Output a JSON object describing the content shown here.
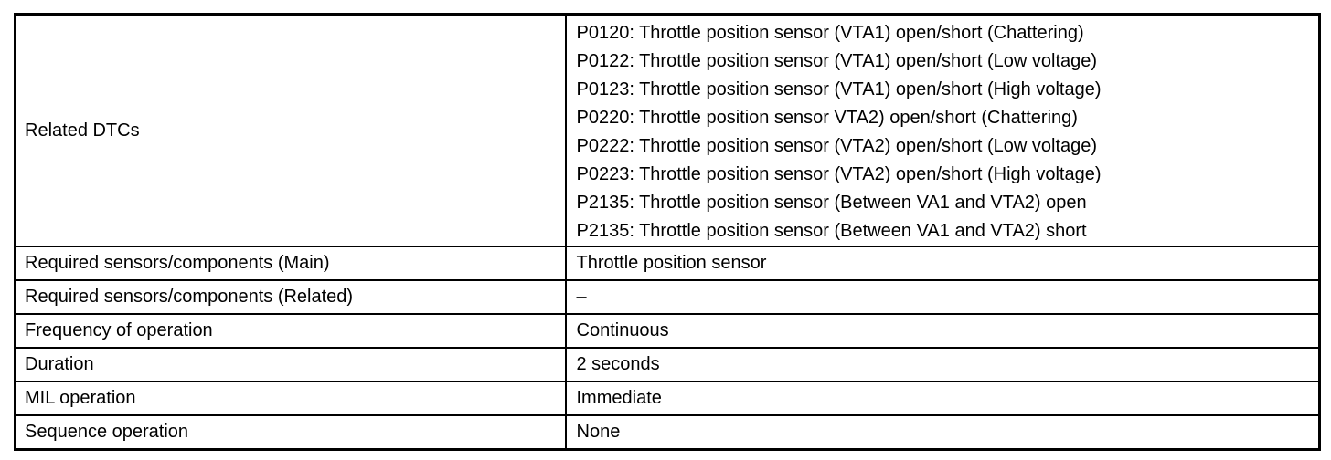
{
  "colors": {
    "border": "#000000",
    "text": "#000000",
    "background": "#ffffff"
  },
  "table": {
    "rows": [
      {
        "label": "Related DTCs",
        "values": [
          "P0120: Throttle position sensor (VTA1) open/short (Chattering)",
          "P0122: Throttle position sensor (VTA1) open/short (Low voltage)",
          "P0123: Throttle position sensor (VTA1) open/short (High voltage)",
          "P0220: Throttle position sensor VTA2) open/short (Chattering)",
          "P0222: Throttle position sensor (VTA2) open/short (Low voltage)",
          "P0223: Throttle position sensor (VTA2) open/short (High voltage)",
          "P2135: Throttle position sensor (Between VA1 and VTA2) open",
          "P2135: Throttle position sensor (Between VA1 and VTA2) short"
        ]
      },
      {
        "label": "Required sensors/components (Main)",
        "values": [
          "Throttle position sensor"
        ]
      },
      {
        "label": "Required sensors/components (Related)",
        "values": [
          "–"
        ]
      },
      {
        "label": "Frequency of operation",
        "values": [
          "Continuous"
        ]
      },
      {
        "label": "Duration",
        "values": [
          "2 seconds"
        ]
      },
      {
        "label": "MIL operation",
        "values": [
          "Immediate"
        ]
      },
      {
        "label": "Sequence operation",
        "values": [
          "None"
        ]
      }
    ]
  }
}
